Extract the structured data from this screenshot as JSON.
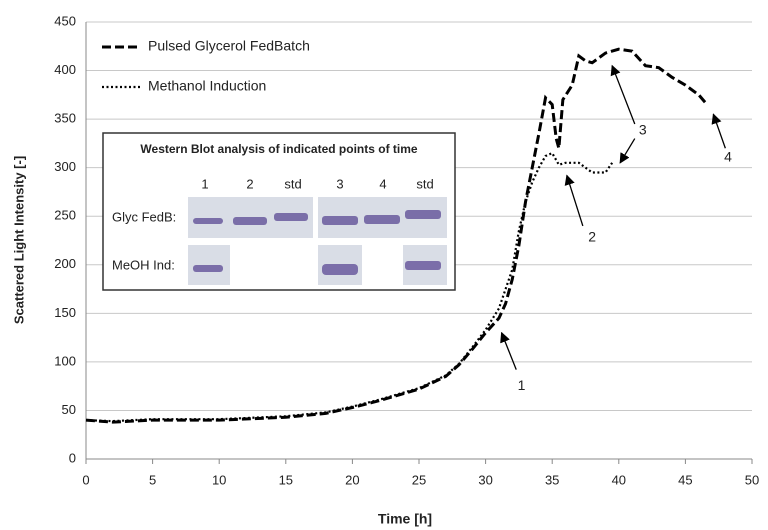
{
  "chart_data": {
    "type": "line",
    "xlabel": "Time [h]",
    "ylabel": "Scattered Light Intensity [-]",
    "xlim": [
      0,
      50
    ],
    "xticks": [
      0,
      5,
      10,
      15,
      20,
      25,
      30,
      35,
      40,
      45,
      50
    ],
    "ylim": [
      0,
      450
    ],
    "yticks": [
      0,
      50,
      100,
      150,
      200,
      250,
      300,
      350,
      400,
      450
    ],
    "grid": true,
    "legend": "upper left",
    "series": [
      {
        "name": "Pulsed Glycerol FedBatch",
        "color": "#000000",
        "style": "dashed",
        "x": [
          0,
          2,
          5,
          10,
          15,
          18,
          20,
          22,
          25,
          27,
          28,
          29,
          30,
          31,
          31.5,
          32,
          32.5,
          33,
          33.5,
          34,
          34.5,
          35,
          35.3,
          35.5,
          35.8,
          36.5,
          37,
          37.5,
          38,
          39,
          40,
          41,
          42,
          43,
          44,
          45,
          46,
          46.5
        ],
        "values": [
          40,
          38,
          40,
          40,
          43,
          47,
          53,
          60,
          72,
          85,
          97,
          113,
          130,
          145,
          160,
          185,
          220,
          265,
          300,
          335,
          372,
          365,
          330,
          320,
          370,
          385,
          415,
          410,
          408,
          418,
          422,
          420,
          405,
          403,
          393,
          385,
          375,
          367
        ]
      },
      {
        "name": "Methanol Induction",
        "color": "#000000",
        "style": "dotted",
        "x": [
          0,
          2,
          5,
          10,
          15,
          18,
          20,
          22,
          25,
          27,
          28,
          29,
          30,
          31,
          32,
          32.5,
          33,
          33.5,
          34,
          34.5,
          35,
          35.5,
          36,
          37,
          38,
          39,
          39.5
        ],
        "values": [
          40,
          39,
          41,
          41,
          44,
          48,
          54,
          61,
          73,
          86,
          98,
          115,
          133,
          155,
          195,
          235,
          265,
          285,
          300,
          312,
          315,
          303,
          305,
          305,
          295,
          295,
          305
        ]
      }
    ],
    "annotations": [
      {
        "text": "1"
      },
      {
        "text": "2"
      },
      {
        "text": "3"
      },
      {
        "text": "4"
      }
    ],
    "inset": {
      "title": "Western Blot analysis of indicated points of time",
      "lanes": [
        "1",
        "2",
        "std",
        "3",
        "4",
        "std"
      ],
      "rows": [
        "Glyc FedB:",
        "MeOH Ind:"
      ]
    }
  }
}
